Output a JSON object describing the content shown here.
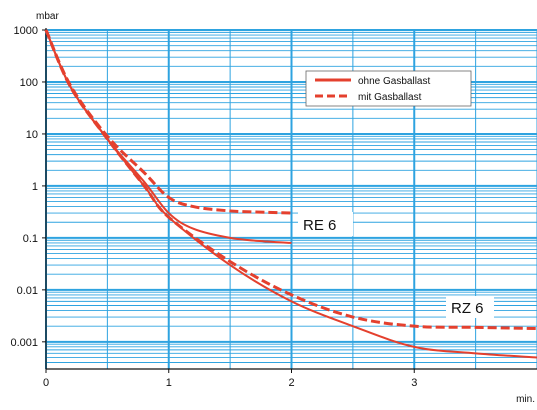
{
  "chart_data": {
    "type": "line",
    "title": "",
    "xlabel": "min.",
    "ylabel": "mbar",
    "x_scale": "linear",
    "y_scale": "log",
    "xlim": [
      0,
      4
    ],
    "ylim": [
      0.0003,
      1000
    ],
    "x_ticks": [
      0,
      1,
      2,
      3
    ],
    "x_tick_labels": [
      "0",
      "1",
      "2",
      "3"
    ],
    "y_ticks": [
      1000,
      100,
      10,
      1,
      0.1,
      0.01,
      0.001
    ],
    "y_tick_labels": [
      "1000",
      "100",
      "10",
      "1",
      "0.1",
      "0.01",
      "0.001"
    ],
    "grid": true,
    "legend_position": "top-right",
    "legend": [
      {
        "label": "ohne Gasballast",
        "style": "solid"
      },
      {
        "label": "mit Gasballast",
        "style": "dashed"
      }
    ],
    "annotations": [
      {
        "text": "RE 6",
        "x": 2.3,
        "y": 0.13
      },
      {
        "text": "RZ 6",
        "x": 3.22,
        "y": 0.0025
      }
    ],
    "series": [
      {
        "style": "solid",
        "x": [
          0,
          0.2,
          0.5,
          0.8,
          1.0,
          1.2,
          1.5,
          1.8,
          2.0
        ],
        "y": [
          1000,
          80,
          8,
          1.2,
          0.3,
          0.15,
          0.1,
          0.085,
          0.08
        ]
      },
      {
        "style": "dashed",
        "x": [
          0,
          0.2,
          0.5,
          0.8,
          1.0,
          1.2,
          1.5,
          1.8,
          2.0
        ],
        "y": [
          1000,
          85,
          9,
          1.8,
          0.6,
          0.4,
          0.33,
          0.31,
          0.3
        ]
      },
      {
        "style": "solid",
        "x": [
          0,
          0.2,
          0.5,
          0.8,
          1.0,
          1.5,
          2.0,
          2.5,
          3.0,
          3.5,
          4.0
        ],
        "y": [
          1000,
          80,
          8,
          1.0,
          0.25,
          0.03,
          0.006,
          0.002,
          0.0008,
          0.0006,
          0.0005
        ]
      },
      {
        "style": "dashed",
        "x": [
          0,
          0.2,
          0.5,
          0.8,
          1.0,
          1.5,
          2.0,
          2.5,
          3.0,
          3.5,
          4.0
        ],
        "y": [
          1000,
          80,
          8,
          1.0,
          0.25,
          0.035,
          0.008,
          0.003,
          0.002,
          0.0019,
          0.0018
        ]
      }
    ]
  },
  "colors": {
    "background": "#ffffff",
    "grid": "#2ea3e0",
    "axis": "#111111",
    "curve": "#e4402e"
  }
}
